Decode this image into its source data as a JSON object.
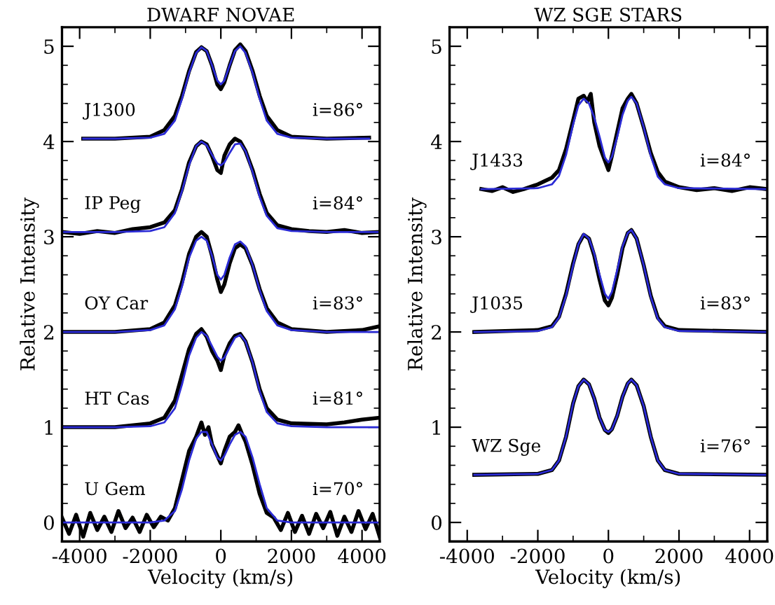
{
  "chart_data": [
    {
      "type": "line",
      "title": "DWARF NOVAE",
      "xlabel": "Velocity (km/s)",
      "ylabel": "Relative Intensity",
      "xlim": [
        -4500,
        4500
      ],
      "ylim": [
        -0.2,
        5.2
      ],
      "xticks": [
        -4000,
        {
          "value": -3000,
          "label": null
        },
        -2000,
        {
          "value": -1000,
          "label": null
        },
        0,
        {
          "value": 1000,
          "label": null
        },
        2000,
        {
          "value": 3000,
          "label": null
        },
        4000
      ],
      "yticks": [
        0,
        {
          "value": 0.2,
          "label": null
        },
        {
          "value": 0.4,
          "label": null
        },
        {
          "value": 0.6,
          "label": null
        },
        {
          "value": 0.8,
          "label": null
        },
        1,
        {
          "value": 1.2,
          "label": null
        },
        {
          "value": 1.4,
          "label": null
        },
        {
          "value": 1.6,
          "label": null
        },
        {
          "value": 1.8,
          "label": null
        },
        2,
        {
          "value": 2.2,
          "label": null
        },
        {
          "value": 2.4,
          "label": null
        },
        {
          "value": 2.6,
          "label": null
        },
        {
          "value": 2.8,
          "label": null
        },
        3,
        {
          "value": 3.2,
          "label": null
        },
        {
          "value": 3.4,
          "label": null
        },
        {
          "value": 3.6,
          "label": null
        },
        {
          "value": 3.8,
          "label": null
        },
        4,
        {
          "value": 4.2,
          "label": null
        },
        {
          "value": 4.4,
          "label": null
        },
        {
          "value": 4.6,
          "label": null
        },
        {
          "value": 4.8,
          "label": null
        },
        5
      ],
      "grid": false,
      "legend": false,
      "marker": "none",
      "line_style": "solid",
      "annotations": [
        "i=86°",
        "i=84°",
        "i=83°",
        "i=81°",
        "i=70°"
      ],
      "series": [
        {
          "name": "J1300",
          "color": "#000000",
          "x": [
            -3900,
            -3000,
            -2000,
            -1600,
            -1300,
            -1100,
            -900,
            -700,
            -550,
            -400,
            -250,
            -100,
            0,
            100,
            250,
            400,
            550,
            700,
            900,
            1100,
            1300,
            1600,
            2000,
            3000,
            4200
          ],
          "values": [
            4.03,
            4.03,
            4.05,
            4.12,
            4.27,
            4.48,
            4.74,
            4.94,
            4.99,
            4.95,
            4.8,
            4.6,
            4.55,
            4.62,
            4.8,
            4.96,
            5.02,
            4.95,
            4.74,
            4.48,
            4.27,
            4.12,
            4.05,
            4.03,
            4.04
          ]
        },
        {
          "color": "#2b2bd6",
          "x": [
            -3900,
            -3000,
            -2000,
            -1600,
            -1300,
            -1100,
            -900,
            -700,
            -550,
            -400,
            -250,
            -100,
            0,
            100,
            250,
            400,
            550,
            700,
            900,
            1100,
            1300,
            1600,
            2000,
            3000,
            4200
          ],
          "values": [
            4.03,
            4.03,
            4.04,
            4.08,
            4.22,
            4.45,
            4.72,
            4.93,
            4.99,
            4.95,
            4.8,
            4.64,
            4.6,
            4.64,
            4.8,
            4.95,
            5.0,
            4.93,
            4.72,
            4.45,
            4.22,
            4.08,
            4.04,
            4.03,
            4.03
          ]
        },
        {
          "name": "IP Peg",
          "color": "#000000",
          "x": [
            -4500,
            -4000,
            -3500,
            -3000,
            -2500,
            -2000,
            -1600,
            -1300,
            -1100,
            -900,
            -700,
            -550,
            -400,
            -250,
            -100,
            0,
            100,
            250,
            400,
            550,
            700,
            900,
            1100,
            1300,
            1600,
            2000,
            2500,
            3000,
            3500,
            4000,
            4500
          ],
          "values": [
            3.05,
            3.03,
            3.06,
            3.04,
            3.08,
            3.1,
            3.15,
            3.28,
            3.5,
            3.78,
            3.95,
            4.0,
            3.97,
            3.85,
            3.7,
            3.67,
            3.85,
            3.97,
            4.03,
            4.0,
            3.9,
            3.7,
            3.45,
            3.25,
            3.12,
            3.08,
            3.06,
            3.05,
            3.07,
            3.04,
            3.05
          ]
        },
        {
          "color": "#2b2bd6",
          "x": [
            -4500,
            -3000,
            -2000,
            -1600,
            -1300,
            -1100,
            -900,
            -700,
            -550,
            -400,
            -250,
            -100,
            0,
            100,
            250,
            400,
            550,
            700,
            900,
            1100,
            1300,
            1600,
            2000,
            3000,
            4500
          ],
          "values": [
            3.05,
            3.05,
            3.06,
            3.1,
            3.25,
            3.48,
            3.75,
            3.95,
            4.0,
            3.96,
            3.86,
            3.77,
            3.75,
            3.78,
            3.88,
            3.97,
            3.98,
            3.9,
            3.68,
            3.42,
            3.22,
            3.09,
            3.06,
            3.05,
            3.05
          ]
        },
        {
          "name": "OY Car",
          "color": "#000000",
          "x": [
            -4500,
            -3000,
            -2000,
            -1600,
            -1300,
            -1100,
            -900,
            -700,
            -550,
            -400,
            -250,
            -100,
            0,
            100,
            250,
            400,
            550,
            700,
            900,
            1100,
            1300,
            1600,
            2000,
            3000,
            4000,
            4500
          ],
          "values": [
            2.0,
            2.0,
            2.03,
            2.1,
            2.28,
            2.52,
            2.82,
            3.0,
            3.05,
            3.0,
            2.8,
            2.55,
            2.42,
            2.5,
            2.72,
            2.88,
            2.92,
            2.88,
            2.7,
            2.45,
            2.25,
            2.1,
            2.03,
            2.0,
            2.02,
            2.06
          ]
        },
        {
          "color": "#2b2bd6",
          "x": [
            -4500,
            -3000,
            -2000,
            -1600,
            -1300,
            -1100,
            -900,
            -700,
            -550,
            -400,
            -250,
            -100,
            0,
            100,
            250,
            400,
            550,
            700,
            900,
            1100,
            1300,
            1600,
            2000,
            3000,
            4500
          ],
          "values": [
            2.0,
            2.0,
            2.02,
            2.07,
            2.24,
            2.48,
            2.78,
            2.96,
            3.0,
            2.96,
            2.8,
            2.6,
            2.55,
            2.6,
            2.78,
            2.92,
            2.95,
            2.9,
            2.7,
            2.44,
            2.22,
            2.07,
            2.02,
            2.0,
            2.0
          ]
        },
        {
          "name": "HT Cas",
          "color": "#000000",
          "x": [
            -4500,
            -3000,
            -2000,
            -1600,
            -1300,
            -1100,
            -900,
            -700,
            -550,
            -400,
            -250,
            -100,
            0,
            100,
            250,
            400,
            550,
            700,
            900,
            1100,
            1300,
            1600,
            2000,
            3000,
            3500,
            4000,
            4500
          ],
          "values": [
            1.0,
            1.0,
            1.04,
            1.1,
            1.28,
            1.55,
            1.82,
            1.98,
            2.03,
            1.95,
            1.8,
            1.7,
            1.6,
            1.75,
            1.88,
            1.96,
            1.98,
            1.9,
            1.68,
            1.4,
            1.2,
            1.08,
            1.04,
            1.03,
            1.05,
            1.08,
            1.1
          ]
        },
        {
          "color": "#2b2bd6",
          "x": [
            -4500,
            -3000,
            -2000,
            -1600,
            -1300,
            -1100,
            -900,
            -700,
            -550,
            -400,
            -250,
            -100,
            0,
            100,
            250,
            400,
            550,
            700,
            900,
            1100,
            1300,
            1600,
            2000,
            3000,
            4500
          ],
          "values": [
            1.0,
            1.0,
            1.01,
            1.05,
            1.2,
            1.45,
            1.75,
            1.94,
            2.0,
            1.96,
            1.85,
            1.74,
            1.7,
            1.73,
            1.84,
            1.94,
            1.97,
            1.9,
            1.68,
            1.38,
            1.16,
            1.04,
            1.01,
            1.0,
            1.0
          ]
        },
        {
          "name": "U Gem",
          "color": "#000000",
          "x": [
            -4500,
            -4300,
            -4100,
            -3900,
            -3700,
            -3500,
            -3300,
            -3100,
            -2900,
            -2700,
            -2500,
            -2300,
            -2100,
            -1900,
            -1700,
            -1500,
            -1300,
            -1100,
            -900,
            -700,
            -550,
            -450,
            -350,
            -250,
            -100,
            0,
            100,
            250,
            400,
            500,
            600,
            700,
            900,
            1100,
            1300,
            1500,
            1700,
            1900,
            2100,
            2300,
            2500,
            2700,
            2900,
            3100,
            3300,
            3500,
            3700,
            3900,
            4100,
            4300,
            4500
          ],
          "values": [
            0.05,
            -0.12,
            0.08,
            -0.15,
            0.1,
            -0.08,
            0.06,
            -0.1,
            0.12,
            -0.06,
            0.05,
            -0.1,
            0.08,
            -0.05,
            0.06,
            0.02,
            0.15,
            0.45,
            0.75,
            0.9,
            1.05,
            0.92,
            1.0,
            0.82,
            0.7,
            0.62,
            0.75,
            0.9,
            0.95,
            1.02,
            0.93,
            0.85,
            0.6,
            0.3,
            0.1,
            0.05,
            -0.08,
            0.1,
            -0.1,
            0.07,
            -0.12,
            0.09,
            -0.06,
            0.11,
            -0.14,
            0.06,
            -0.1,
            0.12,
            -0.07,
            0.09,
            -0.15
          ]
        },
        {
          "color": "#2b2bd6",
          "x": [
            -4500,
            -3000,
            -2000,
            -1600,
            -1300,
            -1100,
            -900,
            -700,
            -550,
            -400,
            -250,
            -100,
            0,
            100,
            250,
            400,
            550,
            700,
            900,
            1100,
            1300,
            1600,
            2000,
            3000,
            4500
          ],
          "values": [
            0.0,
            0.0,
            0.0,
            0.02,
            0.12,
            0.35,
            0.65,
            0.88,
            0.95,
            0.95,
            0.82,
            0.68,
            0.65,
            0.7,
            0.82,
            0.92,
            0.95,
            0.9,
            0.68,
            0.4,
            0.15,
            0.02,
            0.0,
            0.0,
            0.0
          ]
        }
      ]
    },
    {
      "type": "line",
      "title": "WZ SGE STARS",
      "xlabel": "Velocity (km/s)",
      "ylabel": "Relative Intensity",
      "xlim": [
        -4500,
        4500
      ],
      "ylim": [
        -0.2,
        5.2
      ],
      "xticks": [
        -4000,
        {
          "value": -3000,
          "label": null
        },
        -2000,
        {
          "value": -1000,
          "label": null
        },
        0,
        {
          "value": 1000,
          "label": null
        },
        2000,
        {
          "value": 3000,
          "label": null
        },
        4000
      ],
      "yticks": [
        0,
        {
          "value": 0.2,
          "label": null
        },
        {
          "value": 0.4,
          "label": null
        },
        {
          "value": 0.6,
          "label": null
        },
        {
          "value": 0.8,
          "label": null
        },
        1,
        {
          "value": 1.2,
          "label": null
        },
        {
          "value": 1.4,
          "label": null
        },
        {
          "value": 1.6,
          "label": null
        },
        {
          "value": 1.8,
          "label": null
        },
        2,
        {
          "value": 2.2,
          "label": null
        },
        {
          "value": 2.4,
          "label": null
        },
        {
          "value": 2.6,
          "label": null
        },
        {
          "value": 2.8,
          "label": null
        },
        3,
        {
          "value": 3.2,
          "label": null
        },
        {
          "value": 3.4,
          "label": null
        },
        {
          "value": 3.6,
          "label": null
        },
        {
          "value": 3.8,
          "label": null
        },
        4,
        {
          "value": 4.2,
          "label": null
        },
        {
          "value": 4.4,
          "label": null
        },
        {
          "value": 4.6,
          "label": null
        },
        {
          "value": 4.8,
          "label": null
        },
        5
      ],
      "grid": false,
      "legend": false,
      "marker": "none",
      "line_style": "solid",
      "annotations": [
        "i=84°",
        "i=83°",
        "i=76°"
      ],
      "series": [
        {
          "name": "J1433",
          "color": "#000000",
          "x": [
            -3600,
            -3300,
            -3000,
            -2700,
            -2400,
            -2000,
            -1600,
            -1400,
            -1200,
            -1000,
            -850,
            -700,
            -600,
            -500,
            -400,
            -250,
            -100,
            0,
            100,
            250,
            400,
            550,
            650,
            800,
            1000,
            1200,
            1400,
            1600,
            2000,
            2500,
            3000,
            3500,
            4000,
            4500
          ],
          "values": [
            3.5,
            3.48,
            3.52,
            3.47,
            3.5,
            3.55,
            3.62,
            3.7,
            3.92,
            4.22,
            4.45,
            4.48,
            4.42,
            4.5,
            4.2,
            3.95,
            3.8,
            3.7,
            3.85,
            4.1,
            4.35,
            4.45,
            4.5,
            4.4,
            4.15,
            3.88,
            3.68,
            3.58,
            3.52,
            3.49,
            3.51,
            3.48,
            3.52,
            3.5
          ]
        },
        {
          "color": "#2b2bd6",
          "x": [
            -3600,
            -2000,
            -1600,
            -1400,
            -1200,
            -1000,
            -850,
            -700,
            -550,
            -400,
            -250,
            -100,
            0,
            100,
            250,
            400,
            550,
            650,
            800,
            1000,
            1200,
            1400,
            1600,
            2000,
            4500
          ],
          "values": [
            3.5,
            3.51,
            3.55,
            3.64,
            3.86,
            4.18,
            4.38,
            4.45,
            4.4,
            4.25,
            4.05,
            3.83,
            3.78,
            3.84,
            4.05,
            4.28,
            4.43,
            4.47,
            4.4,
            4.15,
            3.85,
            3.63,
            3.55,
            3.51,
            3.5
          ]
        },
        {
          "name": "J1035",
          "color": "#000000",
          "x": [
            -3800,
            -2000,
            -1600,
            -1400,
            -1200,
            -1000,
            -850,
            -700,
            -550,
            -400,
            -250,
            -100,
            0,
            100,
            250,
            400,
            550,
            650,
            800,
            1000,
            1200,
            1400,
            1600,
            2000,
            4500
          ],
          "values": [
            2.0,
            2.02,
            2.06,
            2.16,
            2.4,
            2.72,
            2.92,
            3.02,
            2.98,
            2.8,
            2.55,
            2.33,
            2.28,
            2.36,
            2.6,
            2.88,
            3.04,
            3.07,
            2.98,
            2.7,
            2.38,
            2.15,
            2.06,
            2.02,
            2.0
          ]
        },
        {
          "color": "#2b2bd6",
          "x": [
            -3800,
            -2000,
            -1600,
            -1400,
            -1200,
            -1000,
            -850,
            -700,
            -550,
            -400,
            -250,
            -100,
            0,
            100,
            250,
            400,
            550,
            650,
            800,
            1000,
            1200,
            1400,
            1600,
            2000,
            4500
          ],
          "values": [
            2.0,
            2.01,
            2.05,
            2.15,
            2.38,
            2.7,
            2.92,
            3.03,
            2.98,
            2.82,
            2.6,
            2.4,
            2.35,
            2.42,
            2.65,
            2.9,
            3.04,
            3.07,
            2.98,
            2.7,
            2.37,
            2.14,
            2.05,
            2.01,
            2.0
          ]
        },
        {
          "name": "WZ Sge",
          "color": "#000000",
          "x": [
            -3800,
            -2000,
            -1600,
            -1400,
            -1200,
            -1000,
            -850,
            -700,
            -550,
            -400,
            -250,
            -100,
            0,
            100,
            250,
            400,
            550,
            650,
            800,
            1000,
            1200,
            1400,
            1600,
            2000,
            4500
          ],
          "values": [
            0.5,
            0.51,
            0.55,
            0.65,
            0.9,
            1.25,
            1.43,
            1.5,
            1.45,
            1.3,
            1.1,
            0.97,
            0.94,
            0.98,
            1.12,
            1.32,
            1.46,
            1.5,
            1.44,
            1.22,
            0.9,
            0.65,
            0.55,
            0.51,
            0.5
          ]
        },
        {
          "color": "#2b2bd6",
          "x": [
            -3800,
            -2000,
            -1600,
            -1400,
            -1200,
            -1000,
            -850,
            -700,
            -550,
            -400,
            -250,
            -100,
            0,
            100,
            250,
            400,
            550,
            650,
            800,
            1000,
            1200,
            1400,
            1600,
            2000,
            4500
          ],
          "values": [
            0.5,
            0.51,
            0.55,
            0.65,
            0.9,
            1.25,
            1.43,
            1.5,
            1.45,
            1.3,
            1.1,
            0.97,
            0.95,
            0.98,
            1.12,
            1.32,
            1.46,
            1.5,
            1.44,
            1.22,
            0.9,
            0.65,
            0.55,
            0.51,
            0.5
          ]
        }
      ]
    }
  ]
}
